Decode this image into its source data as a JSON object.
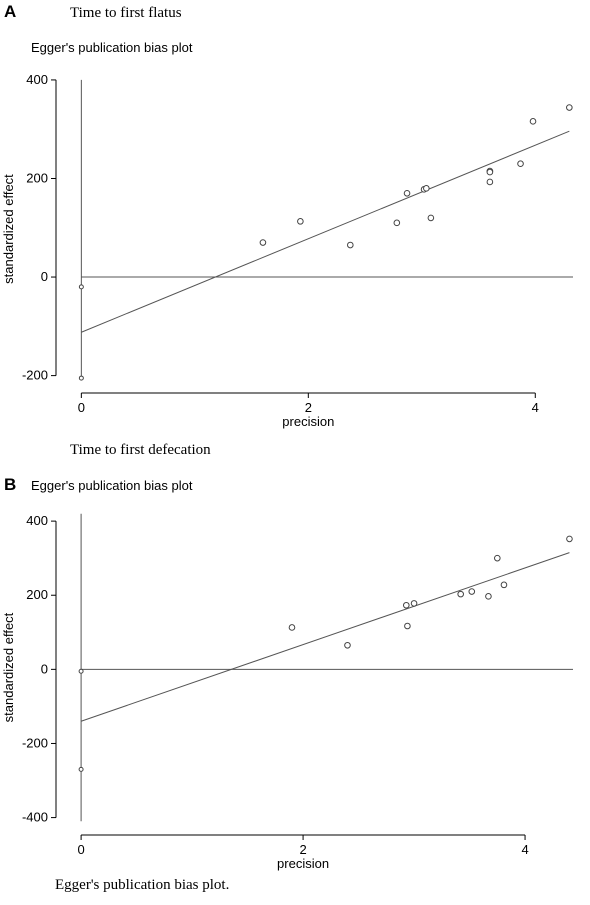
{
  "panels": [
    {
      "letter": "A",
      "caption": "Time to first flatus",
      "title": "Egger's publication bias plot"
    },
    {
      "letter": "B",
      "caption": "Time to first defecation",
      "title": "Egger's publication bias plot"
    }
  ],
  "figure_caption": "Egger's publication bias plot.",
  "chart_data": [
    {
      "type": "scatter",
      "title": "Egger's publication bias plot",
      "xlabel": "precision",
      "ylabel": "standardized effect",
      "xlim": [
        -0.1,
        4.35
      ],
      "ylim": [
        -215,
        410
      ],
      "xticks": [
        0,
        2,
        4
      ],
      "yticks": [
        -200,
        0,
        200,
        400
      ],
      "grid": false,
      "points": [
        {
          "x": 0,
          "y": -20
        },
        {
          "x": 0,
          "y": -205
        },
        {
          "x": 1.6,
          "y": 70
        },
        {
          "x": 1.93,
          "y": 113
        },
        {
          "x": 2.37,
          "y": 65
        },
        {
          "x": 2.78,
          "y": 110
        },
        {
          "x": 2.87,
          "y": 170
        },
        {
          "x": 3.02,
          "y": 178
        },
        {
          "x": 3.04,
          "y": 180
        },
        {
          "x": 3.08,
          "y": 120
        },
        {
          "x": 3.6,
          "y": 215
        },
        {
          "x": 3.6,
          "y": 213
        },
        {
          "x": 3.6,
          "y": 193
        },
        {
          "x": 3.87,
          "y": 230
        },
        {
          "x": 3.98,
          "y": 316
        },
        {
          "x": 4.3,
          "y": 344
        }
      ],
      "fit_line": {
        "x": [
          0,
          4.3
        ],
        "y": [
          -112,
          296
        ]
      },
      "zero_line": 0,
      "ci_bar": {
        "x": 0,
        "y": [
          -208,
          400
        ]
      }
    },
    {
      "type": "scatter",
      "title": "Egger's publication bias plot",
      "xlabel": "precision",
      "ylabel": "standardized effect",
      "xlim": [
        -0.1,
        4.45
      ],
      "ylim": [
        -420,
        430
      ],
      "xticks": [
        0,
        2,
        4
      ],
      "yticks": [
        -400,
        -200,
        0,
        200,
        400
      ],
      "grid": false,
      "points": [
        {
          "x": 0,
          "y": -5
        },
        {
          "x": 0,
          "y": -270
        },
        {
          "x": 1.9,
          "y": 113
        },
        {
          "x": 2.4,
          "y": 65
        },
        {
          "x": 2.93,
          "y": 173
        },
        {
          "x": 2.94,
          "y": 117
        },
        {
          "x": 3.0,
          "y": 178
        },
        {
          "x": 3.42,
          "y": 203
        },
        {
          "x": 3.52,
          "y": 210
        },
        {
          "x": 3.67,
          "y": 197
        },
        {
          "x": 3.75,
          "y": 300
        },
        {
          "x": 3.81,
          "y": 228
        },
        {
          "x": 4.4,
          "y": 352
        }
      ],
      "fit_line": {
        "x": [
          0,
          4.4
        ],
        "y": [
          -140,
          315
        ]
      },
      "zero_line": 0,
      "ci_bar": {
        "x": 0,
        "y": [
          -410,
          420
        ]
      }
    }
  ]
}
